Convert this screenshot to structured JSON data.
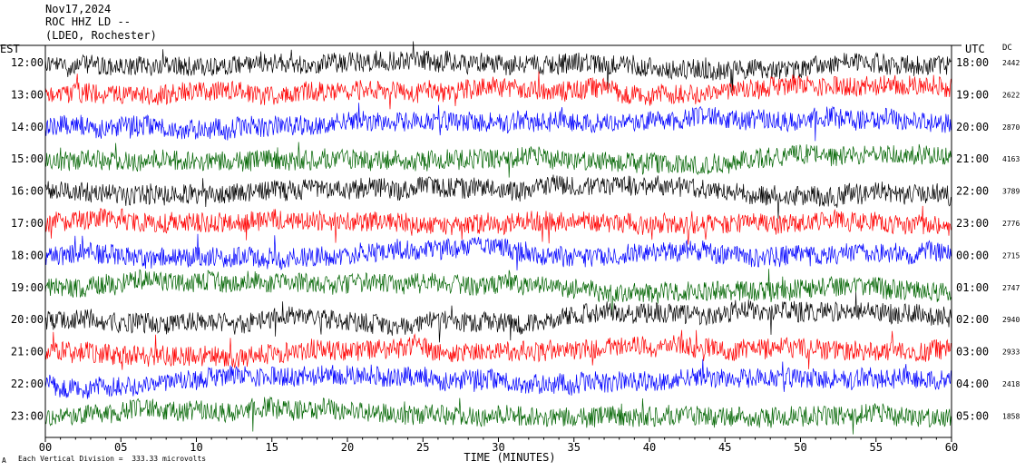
{
  "header": {
    "date": "Nov17,2024",
    "station": "ROC HHZ LD --",
    "location": "(LDEO, Rochester)"
  },
  "labels": {
    "left_tz": "EST",
    "right_tz": "UTC",
    "dc_header": "DC"
  },
  "footer": {
    "scale_note": "Each Vertical Division =  333.33 microvolts",
    "scale_mark": "A"
  },
  "colors": {
    "black": "#000000",
    "red": "#ff0000",
    "blue": "#0000ff",
    "green": "#006400"
  },
  "chart_data": {
    "type": "line",
    "subtype": "helicorder",
    "xlabel": "TIME (MINUTES)",
    "xlim": [
      0,
      60
    ],
    "x_ticks": [
      "00",
      "05",
      "10",
      "15",
      "20",
      "25",
      "30",
      "35",
      "40",
      "45",
      "50",
      "55",
      "60"
    ],
    "rows": [
      {
        "est": "12:00",
        "utc": "18:00",
        "dc": "2442",
        "color": "black"
      },
      {
        "est": "13:00",
        "utc": "19:00",
        "dc": "2622",
        "color": "red"
      },
      {
        "est": "14:00",
        "utc": "20:00",
        "dc": "2870",
        "color": "blue"
      },
      {
        "est": "15:00",
        "utc": "21:00",
        "dc": "4163",
        "color": "green"
      },
      {
        "est": "16:00",
        "utc": "22:00",
        "dc": "3789",
        "color": "black"
      },
      {
        "est": "17:00",
        "utc": "23:00",
        "dc": "2776",
        "color": "red"
      },
      {
        "est": "18:00",
        "utc": "00:00",
        "dc": "2715",
        "color": "blue"
      },
      {
        "est": "19:00",
        "utc": "01:00",
        "dc": "2747",
        "color": "green"
      },
      {
        "est": "20:00",
        "utc": "02:00",
        "dc": "2940",
        "color": "black"
      },
      {
        "est": "21:00",
        "utc": "03:00",
        "dc": "2933",
        "color": "red"
      },
      {
        "est": "22:00",
        "utc": "04:00",
        "dc": "2418",
        "color": "blue"
      },
      {
        "est": "23:00",
        "utc": "05:00",
        "dc": "1858",
        "color": "green"
      }
    ]
  }
}
